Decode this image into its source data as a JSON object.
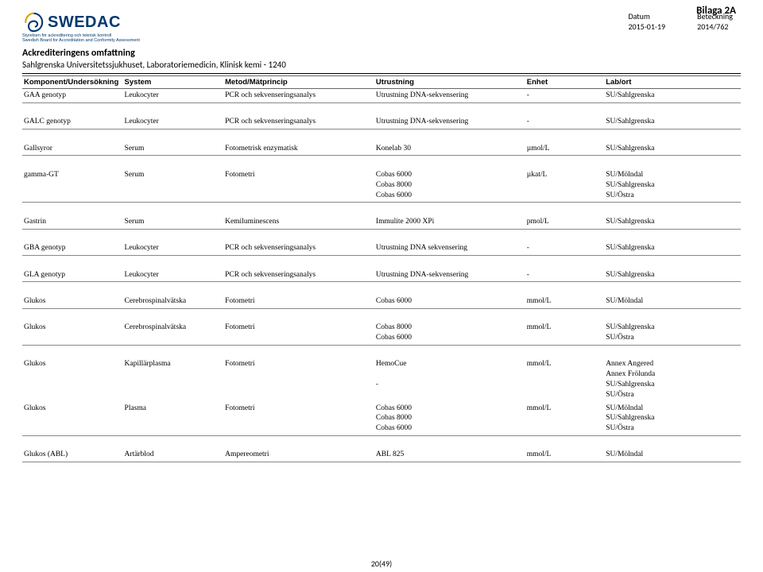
{
  "page": {
    "bilaga": "Bilaga 2A",
    "logo_text": "SWEDAC",
    "logo_sub1": "Styrelsen för ackreditering och teknisk kontroll",
    "logo_sub2": "Swedish Board for Accreditation and Conformity Assessment",
    "meta_datum_label": "Datum",
    "meta_datum_val": "2015-01-19",
    "meta_betk_label": "Beteckning",
    "meta_betk_val": "2014/762",
    "accred_title": "Ackrediteringens omfattning",
    "subtitle": "Sahlgrenska Universitetssjukhuset, Laboratoriemedicin, Klinisk kemi - 1240",
    "footer": "20(49)"
  },
  "headers": {
    "c0": "Komponent/Undersökning",
    "c1": "System",
    "c2": "Metod/Mätprincip",
    "c3": "Utrustning",
    "c4": "Enhet",
    "c5": "Lab/ort"
  },
  "rows": [
    {
      "c0": "GAA genotyp",
      "c1": "Leukocyter",
      "c2": "PCR och sekvenseringsanalys",
      "c3": "Utrustning DNA-sekvensering",
      "c4": "-",
      "c5": "SU/Sahlgrenska",
      "sep": true,
      "gap": 16
    },
    {
      "c0": "GALC genotyp",
      "c1": "Leukocyter",
      "c2": "PCR och sekvenseringsanalys",
      "c3": "Utrustning DNA-sekvensering",
      "c4": "-",
      "c5": "SU/Sahlgrenska",
      "sep": true,
      "gap": 16
    },
    {
      "c0": "Gallsyror",
      "c1": "Serum",
      "c2": "Fotometrisk enzymatisk",
      "c3": "Konelab 30",
      "c4": "µmol/L",
      "c5": "SU/Sahlgrenska",
      "sep": true,
      "gap": 16
    },
    {
      "c0": "gamma-GT",
      "c1": "Serum",
      "c2": "Fotometri",
      "c3": "Cobas 6000\nCobas 8000\nCobas 6000",
      "c4": "µkat/L",
      "c5": "SU/Mölndal\nSU/Sahlgrenska\nSU/Östra",
      "sep": true,
      "gap": 16
    },
    {
      "c0": "Gastrin",
      "c1": "Serum",
      "c2": "Kemiluminescens",
      "c3": "Immulite 2000 XPi",
      "c4": "pmol/L",
      "c5": "SU/Sahlgrenska",
      "sep": true,
      "gap": 16
    },
    {
      "c0": "GBA genotyp",
      "c1": "Leukocyter",
      "c2": "PCR och sekvenseringsanalys",
      "c3": "Utrustning DNA sekvensering",
      "c4": "-",
      "c5": "SU/Sahlgrenska",
      "sep": true,
      "gap": 16
    },
    {
      "c0": "GLA genotyp",
      "c1": "Leukocyter",
      "c2": "PCR och sekvenseringsanalys",
      "c3": "Utrustning DNA-sekvensering",
      "c4": "-",
      "c5": "SU/Sahlgrenska",
      "sep": true,
      "gap": 16
    },
    {
      "c0": "Glukos",
      "c1": "Cerebrospinalvätska",
      "c2": "Fotometri",
      "c3": "Cobas 6000",
      "c4": "mmol/L",
      "c5": "SU/Mölndal",
      "sep": true,
      "gap": 16
    },
    {
      "c0": "Glukos",
      "c1": "Cerebrospinalvätska",
      "c2": "Fotometri",
      "c3": "Cobas 8000\nCobas 6000",
      "c4": "mmol/L",
      "c5": "SU/Sahlgrenska\nSU/Östra",
      "sep": true,
      "gap": 16
    },
    {
      "c0": "Glukos",
      "c1": "Kapillärplasma",
      "c2": "Fotometri",
      "c3": "HemoCue\n\n-",
      "c4": "mmol/L",
      "c5": "Annex Angered\nAnnex Frölunda\nSU/Sahlgrenska\nSU/Östra",
      "sep": false,
      "gap": 0
    },
    {
      "c0": "Glukos",
      "c1": "Plasma",
      "c2": "Fotometri",
      "c3": "Cobas 6000\nCobas 8000\nCobas 6000",
      "c4": "mmol/L",
      "c5": "SU/Mölndal\nSU/Sahlgrenska\nSU/Östra",
      "sep": true,
      "gap": 16
    },
    {
      "c0": "Glukos (ABL)",
      "c1": "Artärblod",
      "c2": "Ampereometri",
      "c3": "ABL 825",
      "c4": "mmol/L",
      "c5": "SU/Mölndal",
      "sep": true,
      "gap": 0
    }
  ],
  "colors": {
    "brand": "#003a6d",
    "text": "#000000",
    "rule": "#888888"
  }
}
